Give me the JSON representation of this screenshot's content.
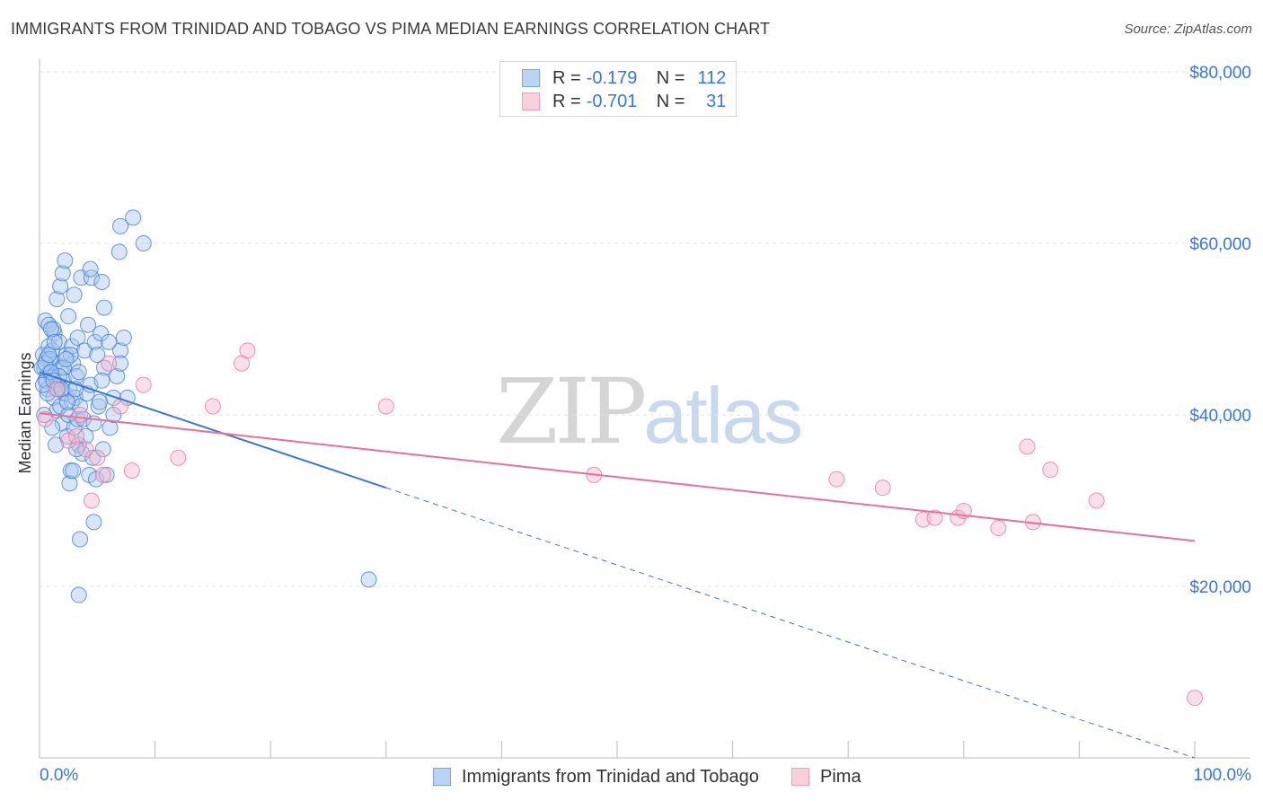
{
  "header": {
    "title": "IMMIGRANTS FROM TRINIDAD AND TOBAGO VS PIMA MEDIAN EARNINGS CORRELATION CHART",
    "source": "Source: ZipAtlas.com"
  },
  "legend": {
    "series": [
      {
        "r_label": "R =",
        "r_value": "-0.179",
        "n_label": "N =",
        "n_value": "112"
      },
      {
        "r_label": "R =",
        "r_value": "-0.701",
        "n_label": "N =",
        "n_value": "31"
      }
    ]
  },
  "watermark": {
    "zip": "ZIP",
    "atlas": "atlas"
  },
  "colors": {
    "blue": "#3a78d4",
    "blue_fill": "#a9c8f0",
    "pink": "#e8719a",
    "pink_fill": "#f5b9cc",
    "grid": "#e3e3e3",
    "axis_text": "#3a78d4"
  },
  "chart_data": {
    "type": "scatter",
    "title": "IMMIGRANTS FROM TRINIDAD AND TOBAGO VS PIMA MEDIAN EARNINGS CORRELATION CHART",
    "xlabel": "",
    "ylabel": "Median Earnings",
    "xlim": [
      0,
      100
    ],
    "ylim": [
      0,
      80000
    ],
    "x_tick_labels": [
      "0.0%",
      "100.0%"
    ],
    "y_ticks": [
      20000,
      40000,
      60000,
      80000
    ],
    "y_tick_labels": [
      "$20,000",
      "$40,000",
      "$60,000",
      "$80,000"
    ],
    "grid": true,
    "legend_position": "bottom",
    "series": [
      {
        "name": "Immigrants from Trinidad and Tobago",
        "color": "#3a78d4",
        "trend": {
          "x0": 0,
          "y0": 45000,
          "x1": 30,
          "y1": 31500,
          "dash_to_x": 100,
          "dash_to_y": -1500
        },
        "points": [
          [
            0.3,
            47000
          ],
          [
            0.4,
            45500
          ],
          [
            0.5,
            44000
          ],
          [
            0.6,
            46500
          ],
          [
            0.7,
            43000
          ],
          [
            0.8,
            48000
          ],
          [
            0.9,
            45000
          ],
          [
            1.0,
            44500
          ],
          [
            1.1,
            47500
          ],
          [
            1.2,
            42000
          ],
          [
            1.3,
            49500
          ],
          [
            1.4,
            46000
          ],
          [
            1.5,
            40500
          ],
          [
            1.6,
            43500
          ],
          [
            1.7,
            48500
          ],
          [
            1.8,
            41000
          ],
          [
            1.9,
            45500
          ],
          [
            2.0,
            39000
          ],
          [
            2.1,
            44000
          ],
          [
            2.2,
            42500
          ],
          [
            2.3,
            47000
          ],
          [
            2.4,
            37500
          ],
          [
            2.5,
            40000
          ],
          [
            2.6,
            43000
          ],
          [
            2.7,
            33500
          ],
          [
            2.8,
            41500
          ],
          [
            2.9,
            46000
          ],
          [
            3.0,
            38500
          ],
          [
            3.1,
            42000
          ],
          [
            3.2,
            44500
          ],
          [
            3.3,
            39500
          ],
          [
            3.4,
            36500
          ],
          [
            0.5,
            51000
          ],
          [
            0.8,
            50500
          ],
          [
            1.2,
            50000
          ],
          [
            1.5,
            53500
          ],
          [
            1.8,
            55000
          ],
          [
            2.0,
            56500
          ],
          [
            2.2,
            58000
          ],
          [
            2.5,
            51500
          ],
          [
            2.8,
            48000
          ],
          [
            3.0,
            54000
          ],
          [
            3.3,
            49000
          ],
          [
            3.6,
            56000
          ],
          [
            3.9,
            47500
          ],
          [
            4.2,
            50500
          ],
          [
            4.5,
            56000
          ],
          [
            4.8,
            48500
          ],
          [
            5.0,
            47000
          ],
          [
            5.3,
            49500
          ],
          [
            5.6,
            45500
          ],
          [
            3.5,
            41000
          ],
          [
            3.8,
            39500
          ],
          [
            4.1,
            42500
          ],
          [
            4.4,
            43500
          ],
          [
            4.7,
            39000
          ],
          [
            5.1,
            41000
          ],
          [
            5.4,
            44000
          ],
          [
            3.7,
            35500
          ],
          [
            4.0,
            37500
          ],
          [
            4.3,
            33000
          ],
          [
            4.6,
            35000
          ],
          [
            4.9,
            32500
          ],
          [
            2.6,
            32000
          ],
          [
            2.9,
            33500
          ],
          [
            3.2,
            36000
          ],
          [
            3.5,
            25500
          ],
          [
            3.4,
            19000
          ],
          [
            4.7,
            27500
          ],
          [
            5.5,
            36000
          ],
          [
            5.8,
            33000
          ],
          [
            6.1,
            38500
          ],
          [
            6.4,
            42000
          ],
          [
            6.7,
            44500
          ],
          [
            7.0,
            47500
          ],
          [
            7.3,
            49000
          ],
          [
            5.6,
            52500
          ],
          [
            7.6,
            42000
          ],
          [
            7.0,
            46000
          ],
          [
            6.4,
            40000
          ],
          [
            1.0,
            50000
          ],
          [
            1.3,
            48500
          ],
          [
            0.6,
            44000
          ],
          [
            0.9,
            46500
          ],
          [
            1.6,
            43000
          ],
          [
            2.1,
            45500
          ],
          [
            2.4,
            41500
          ],
          [
            2.7,
            47000
          ],
          [
            3.1,
            43000
          ],
          [
            3.4,
            45000
          ],
          [
            0.4,
            40000
          ],
          [
            0.7,
            42500
          ],
          [
            1.1,
            38500
          ],
          [
            1.4,
            36500
          ],
          [
            1.7,
            44500
          ],
          [
            0.2,
            45500
          ],
          [
            0.3,
            43500
          ],
          [
            0.5,
            46000
          ],
          [
            0.8,
            47000
          ],
          [
            1.0,
            45000
          ],
          [
            1.2,
            44000
          ],
          [
            7.0,
            62000
          ],
          [
            8.1,
            63000
          ],
          [
            9.0,
            60000
          ],
          [
            6.9,
            59000
          ],
          [
            5.4,
            55500
          ],
          [
            4.4,
            57000
          ],
          [
            28.5,
            20800
          ],
          [
            1.9,
            43000
          ],
          [
            2.3,
            46500
          ],
          [
            6.0,
            48500
          ],
          [
            5.2,
            41500
          ]
        ]
      },
      {
        "name": "Pima",
        "color": "#e8719a",
        "trend": {
          "x0": 0,
          "y0": 40200,
          "x1": 100,
          "y1": 25300
        },
        "points": [
          [
            0.5,
            39500
          ],
          [
            1.5,
            43000
          ],
          [
            2.5,
            37000
          ],
          [
            3.5,
            40000
          ],
          [
            4.0,
            36000
          ],
          [
            4.5,
            30000
          ],
          [
            5.0,
            35000
          ],
          [
            5.5,
            33000
          ],
          [
            6.0,
            46000
          ],
          [
            7.0,
            41000
          ],
          [
            8.0,
            33500
          ],
          [
            9.0,
            43500
          ],
          [
            12.0,
            35000
          ],
          [
            15.0,
            41000
          ],
          [
            17.5,
            46000
          ],
          [
            18.0,
            47500
          ],
          [
            30.0,
            41000
          ],
          [
            48.0,
            33000
          ],
          [
            69.0,
            32500
          ],
          [
            73.0,
            31500
          ],
          [
            76.5,
            27800
          ],
          [
            77.5,
            28000
          ],
          [
            79.5,
            28000
          ],
          [
            80.0,
            28800
          ],
          [
            83.0,
            26800
          ],
          [
            85.5,
            36300
          ],
          [
            86.0,
            27500
          ],
          [
            87.5,
            33600
          ],
          [
            91.5,
            30000
          ],
          [
            100.0,
            7000
          ],
          [
            3.2,
            37500
          ]
        ]
      }
    ]
  }
}
